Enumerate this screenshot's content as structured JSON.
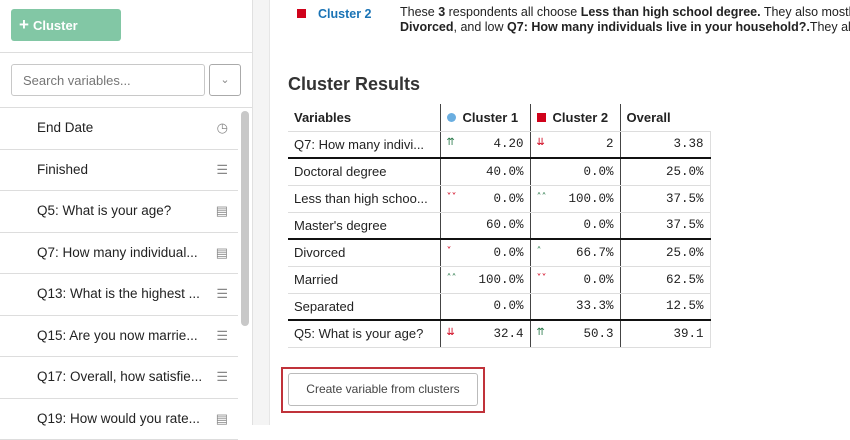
{
  "sidebar": {
    "add_cluster_label": "Cluster",
    "search_placeholder": "Search variables...",
    "items": [
      {
        "label": "End Date",
        "icon": "clock-icon"
      },
      {
        "label": "Finished",
        "icon": "list-icon"
      },
      {
        "label": "Q5: What is your age?",
        "icon": "bar-chart-icon"
      },
      {
        "label": "Q7: How many individual...",
        "icon": "bar-chart-icon"
      },
      {
        "label": "Q13: What is the highest ...",
        "icon": "list-icon"
      },
      {
        "label": "Q15: Are you now marrie...",
        "icon": "list-icon"
      },
      {
        "label": "Q17: Overall, how satisfie...",
        "icon": "list-icon"
      },
      {
        "label": "Q19: How would you rate...",
        "icon": "bar-chart-icon"
      }
    ]
  },
  "cluster_summary": {
    "label": "Cluster 2",
    "color": "#d0021b",
    "t1": "These ",
    "b1": "3",
    "t2": " respondents all choose ",
    "b2": "Less than high school degree.",
    "t3": " They also mostly",
    "b3": "Divorced",
    "t4": ", and low ",
    "b4": "Q7: How many individuals live in your household?.",
    "t5": "They also te"
  },
  "results": {
    "title": "Cluster Results",
    "headers": [
      "Variables",
      "Cluster 1",
      "Cluster 2",
      "Overall"
    ],
    "cluster1_color": "#6aaee0",
    "cluster2_color": "#d0021b",
    "rows": [
      {
        "label": "Q7: How many indivi...",
        "c1": "4.20",
        "c1_arrow": "up-strong",
        "c2": "2",
        "c2_arrow": "down-strong",
        "overall": "3.38"
      },
      {
        "label": "Doctoral degree",
        "c1": "40.0%",
        "c1_arrow": "",
        "c2": "0.0%",
        "c2_arrow": "",
        "overall": "25.0%"
      },
      {
        "label": "Less than high schoo...",
        "c1": "0.0%",
        "c1_arrow": "down-medium",
        "c2": "100.0%",
        "c2_arrow": "up-medium",
        "overall": "37.5%"
      },
      {
        "label": "Master's degree",
        "c1": "60.0%",
        "c1_arrow": "",
        "c2": "0.0%",
        "c2_arrow": "",
        "overall": "37.5%"
      },
      {
        "label": "Divorced",
        "c1": "0.0%",
        "c1_arrow": "down-weak",
        "c2": "66.7%",
        "c2_arrow": "up-weak",
        "overall": "25.0%"
      },
      {
        "label": "Married",
        "c1": "100.0%",
        "c1_arrow": "up-medium",
        "c2": "0.0%",
        "c2_arrow": "down-medium",
        "overall": "62.5%"
      },
      {
        "label": "Separated",
        "c1": "0.0%",
        "c1_arrow": "",
        "c2": "33.3%",
        "c2_arrow": "",
        "overall": "12.5%"
      },
      {
        "label": "Q5: What is your age?",
        "c1": "32.4",
        "c1_arrow": "down-strong",
        "c2": "50.3",
        "c2_arrow": "up-strong",
        "overall": "39.1"
      }
    ]
  },
  "create_button": "Create variable from clusters"
}
